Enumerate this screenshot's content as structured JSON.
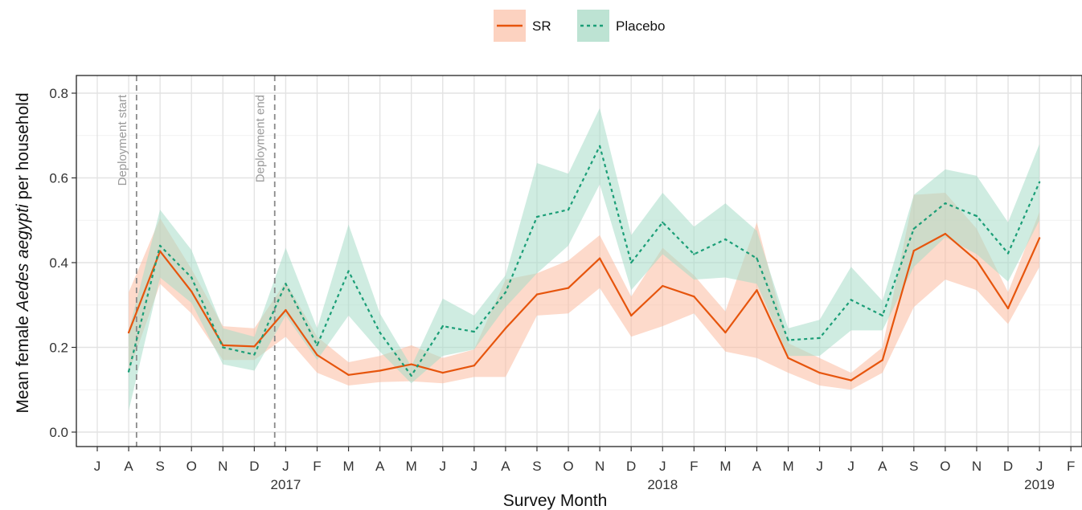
{
  "chart_data": {
    "type": "line",
    "xlabel": "Survey Month",
    "ylabel_prefix": "Mean female ",
    "ylabel_italic": "Aedes aegypti",
    "ylabel_suffix": " per household",
    "ylim": [
      0,
      0.8
    ],
    "y_ticks": [
      "0.0",
      "0.2",
      "0.4",
      "0.6",
      "0.8"
    ],
    "x_tick_labels": [
      "J",
      "A",
      "S",
      "O",
      "N",
      "D",
      "J",
      "F",
      "M",
      "A",
      "M",
      "J",
      "J",
      "A",
      "S",
      "O",
      "N",
      "D",
      "J",
      "F",
      "M",
      "A",
      "M",
      "J",
      "J",
      "A",
      "S",
      "O",
      "N",
      "D",
      "J",
      "F"
    ],
    "year_labels": [
      {
        "label": "2017",
        "index": 6
      },
      {
        "label": "2018",
        "index": 18
      },
      {
        "label": "2019",
        "index": 30
      }
    ],
    "grid": true,
    "legend_position": "top",
    "annotations": [
      {
        "text": "Deployment start",
        "x": 1.25
      },
      {
        "text": "Deployment end",
        "x": 5.65
      }
    ],
    "series": [
      {
        "name": "SR",
        "color": "#e6550d",
        "band_color": "#fcbba1",
        "line_style": "solid",
        "x": [
          1,
          2,
          3,
          4,
          5,
          6,
          7,
          8,
          9,
          10,
          11,
          12,
          13,
          14,
          15,
          16,
          17,
          18,
          19,
          20,
          21,
          22,
          23,
          24,
          25,
          26,
          27,
          28,
          29,
          30
        ],
        "values": [
          0.235,
          0.427,
          0.332,
          0.205,
          0.202,
          0.288,
          0.182,
          0.135,
          0.145,
          0.16,
          0.14,
          0.157,
          0.245,
          0.325,
          0.34,
          0.41,
          0.275,
          0.345,
          0.32,
          0.235,
          0.335,
          0.175,
          0.14,
          0.122,
          0.17,
          0.428,
          0.468,
          0.405,
          0.292,
          0.458
        ],
        "lower": [
          0.14,
          0.35,
          0.28,
          0.17,
          0.17,
          0.225,
          0.14,
          0.11,
          0.118,
          0.12,
          0.115,
          0.13,
          0.13,
          0.275,
          0.28,
          0.34,
          0.225,
          0.25,
          0.28,
          0.19,
          0.175,
          0.14,
          0.11,
          0.1,
          0.14,
          0.295,
          0.36,
          0.335,
          0.255,
          0.39
        ],
        "upper": [
          0.33,
          0.505,
          0.385,
          0.25,
          0.245,
          0.355,
          0.225,
          0.165,
          0.18,
          0.205,
          0.175,
          0.195,
          0.36,
          0.375,
          0.405,
          0.465,
          0.32,
          0.435,
          0.37,
          0.285,
          0.495,
          0.21,
          0.175,
          0.14,
          0.2,
          0.56,
          0.565,
          0.48,
          0.33,
          0.52
        ]
      },
      {
        "name": "Placebo",
        "color": "#1b9e77",
        "band_color": "#a8dcc8",
        "line_style": "dashed",
        "x": [
          1,
          2,
          3,
          4,
          5,
          6,
          7,
          8,
          9,
          10,
          11,
          12,
          13,
          14,
          15,
          16,
          17,
          18,
          19,
          20,
          21,
          22,
          23,
          24,
          25,
          26,
          27,
          28,
          29,
          30
        ],
        "values": [
          0.143,
          0.44,
          0.365,
          0.2,
          0.183,
          0.35,
          0.205,
          0.38,
          0.235,
          0.133,
          0.25,
          0.237,
          0.33,
          0.508,
          0.525,
          0.675,
          0.4,
          0.495,
          0.42,
          0.455,
          0.41,
          0.217,
          0.222,
          0.312,
          0.275,
          0.48,
          0.54,
          0.51,
          0.422,
          0.59
        ],
        "lower": [
          0.05,
          0.365,
          0.305,
          0.16,
          0.145,
          0.275,
          0.17,
          0.275,
          0.19,
          0.115,
          0.18,
          0.195,
          0.295,
          0.375,
          0.44,
          0.585,
          0.335,
          0.42,
          0.36,
          0.365,
          0.35,
          0.18,
          0.18,
          0.24,
          0.24,
          0.39,
          0.46,
          0.42,
          0.355,
          0.5
        ],
        "upper": [
          0.24,
          0.525,
          0.43,
          0.245,
          0.225,
          0.435,
          0.245,
          0.49,
          0.28,
          0.155,
          0.315,
          0.275,
          0.37,
          0.635,
          0.61,
          0.765,
          0.465,
          0.565,
          0.485,
          0.54,
          0.475,
          0.245,
          0.265,
          0.39,
          0.31,
          0.56,
          0.62,
          0.605,
          0.495,
          0.68
        ]
      }
    ]
  }
}
